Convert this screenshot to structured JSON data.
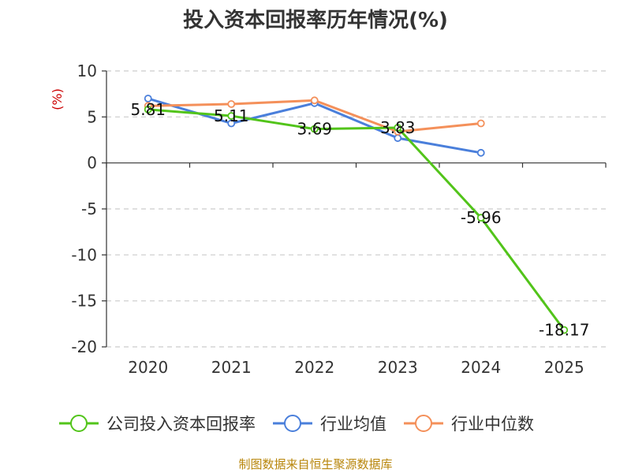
{
  "chart_data": {
    "type": "line",
    "title": "投入资本回报率历年情况(%)",
    "ylabel": "(%)",
    "xlabel": "",
    "categories": [
      "2020",
      "2021",
      "2022",
      "2023",
      "2024",
      "2025"
    ],
    "ylim": [
      -20,
      10
    ],
    "yticks": [
      10,
      5,
      0,
      -5,
      -10,
      -15,
      -20
    ],
    "grid": true,
    "legend_position": "bottom",
    "series": [
      {
        "name": "公司投入资本回报率",
        "color": "#52c41a",
        "values": [
          5.81,
          5.11,
          3.69,
          3.83,
          -5.96,
          -18.17
        ],
        "labels": [
          "5.81",
          "5.11",
          "3.69",
          "3.83",
          "-5.96",
          "-18.17"
        ]
      },
      {
        "name": "行业均值",
        "color": "#4a7fdb",
        "values": [
          7.0,
          4.3,
          6.5,
          2.7,
          1.1,
          null
        ]
      },
      {
        "name": "行业中位数",
        "color": "#f4905a",
        "values": [
          6.2,
          6.4,
          6.8,
          3.4,
          4.3,
          null
        ]
      }
    ],
    "source": "制图数据来自恒生聚源数据库"
  }
}
